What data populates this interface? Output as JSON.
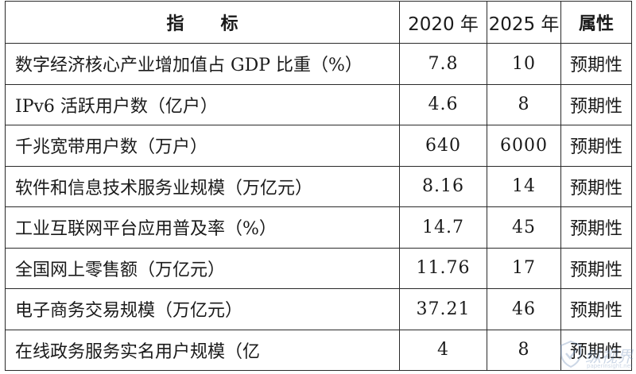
{
  "table": {
    "headers": {
      "indicator_a": "指",
      "indicator_b": "标",
      "year_2020": "2020 年",
      "year_2025": "2025 年",
      "attribute": "属性"
    },
    "rows": [
      {
        "name": "数字经济核心产业增加值占 GDP 比重（%）",
        "v2020": "7.8",
        "v2025": "10",
        "attr": "预期性"
      },
      {
        "name": "IPv6 活跃用户数（亿户）",
        "v2020": "4.6",
        "v2025": "8",
        "attr": "预期性"
      },
      {
        "name": "千兆宽带用户数（万户）",
        "v2020": "640",
        "v2025": "6000",
        "attr": "预期性"
      },
      {
        "name": "软件和信息技术服务业规模（万亿元）",
        "v2020": "8.16",
        "v2025": "14",
        "attr": "预期性"
      },
      {
        "name": "工业互联网平台应用普及率（%）",
        "v2020": "14.7",
        "v2025": "45",
        "attr": "预期性"
      },
      {
        "name": "全国网上零售额（万亿元）",
        "v2020": "11.76",
        "v2025": "17",
        "attr": "预期性"
      },
      {
        "name": "电子商务交易规模（万亿元）",
        "v2020": "37.21",
        "v2025": "46",
        "attr": "预期性"
      },
      {
        "name": "在线政务服务实名用户规模（亿",
        "v2020": "4",
        "v2025": "8",
        "attr": "预期性"
      }
    ]
  },
  "watermark": {
    "text": "纵视界",
    "url": "paperinsight.net",
    "icon": "shield-icon",
    "color": "#6f8fb8"
  }
}
